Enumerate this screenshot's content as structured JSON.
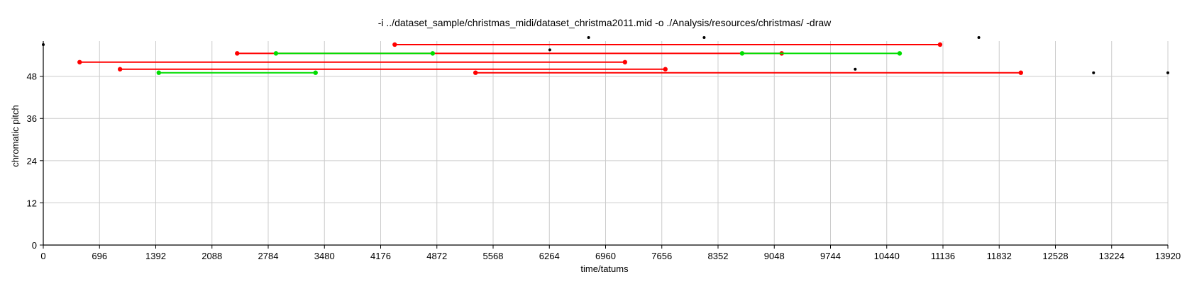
{
  "chart_data": {
    "type": "scatter",
    "title": "-i ../dataset_sample/christmas_midi/dataset_christma2011.mid -o ./Analysis/resources/christmas/ -draw",
    "xlabel": "time/tatums",
    "ylabel": "chromatic pitch",
    "xlim": [
      0,
      13920
    ],
    "ylim": [
      0,
      58
    ],
    "x_ticks": [
      0,
      696,
      1392,
      2088,
      2784,
      3480,
      4176,
      4872,
      5568,
      6264,
      6960,
      7656,
      8352,
      9048,
      9744,
      10440,
      11136,
      11832,
      12528,
      13224,
      13920
    ],
    "y_ticks": [
      0,
      12,
      24,
      36,
      48
    ],
    "grid": true,
    "colors": {
      "red": "#ff0000",
      "green": "#00dd00",
      "black": "#000000",
      "grid": "#cccccc"
    },
    "series": [
      {
        "color": "#ff0000",
        "segments": [
          {
            "x0": 4350,
            "x1": 11100,
            "y": 57
          },
          {
            "x0": 2400,
            "x1": 9140,
            "y": 54.5
          },
          {
            "x0": 450,
            "x1": 7200,
            "y": 52
          },
          {
            "x0": 950,
            "x1": 7700,
            "y": 50
          },
          {
            "x0": 5350,
            "x1": 12100,
            "y": 49
          }
        ]
      },
      {
        "color": "#00dd00",
        "segments": [
          {
            "x0": 2880,
            "x1": 4820,
            "y": 54.5
          },
          {
            "x0": 8650,
            "x1": 10600,
            "y": 54.5
          },
          {
            "x0": 1430,
            "x1": 3370,
            "y": 49
          }
        ]
      },
      {
        "color": "#000000",
        "points": [
          {
            "x": 0,
            "y": 57
          },
          {
            "x": 6270,
            "y": 55.5
          },
          {
            "x": 6750,
            "y": 59
          },
          {
            "x": 8180,
            "y": 59
          },
          {
            "x": 10050,
            "y": 50
          },
          {
            "x": 11580,
            "y": 59
          },
          {
            "x": 13000,
            "y": 49
          },
          {
            "x": 13920,
            "y": 49
          }
        ]
      }
    ]
  }
}
